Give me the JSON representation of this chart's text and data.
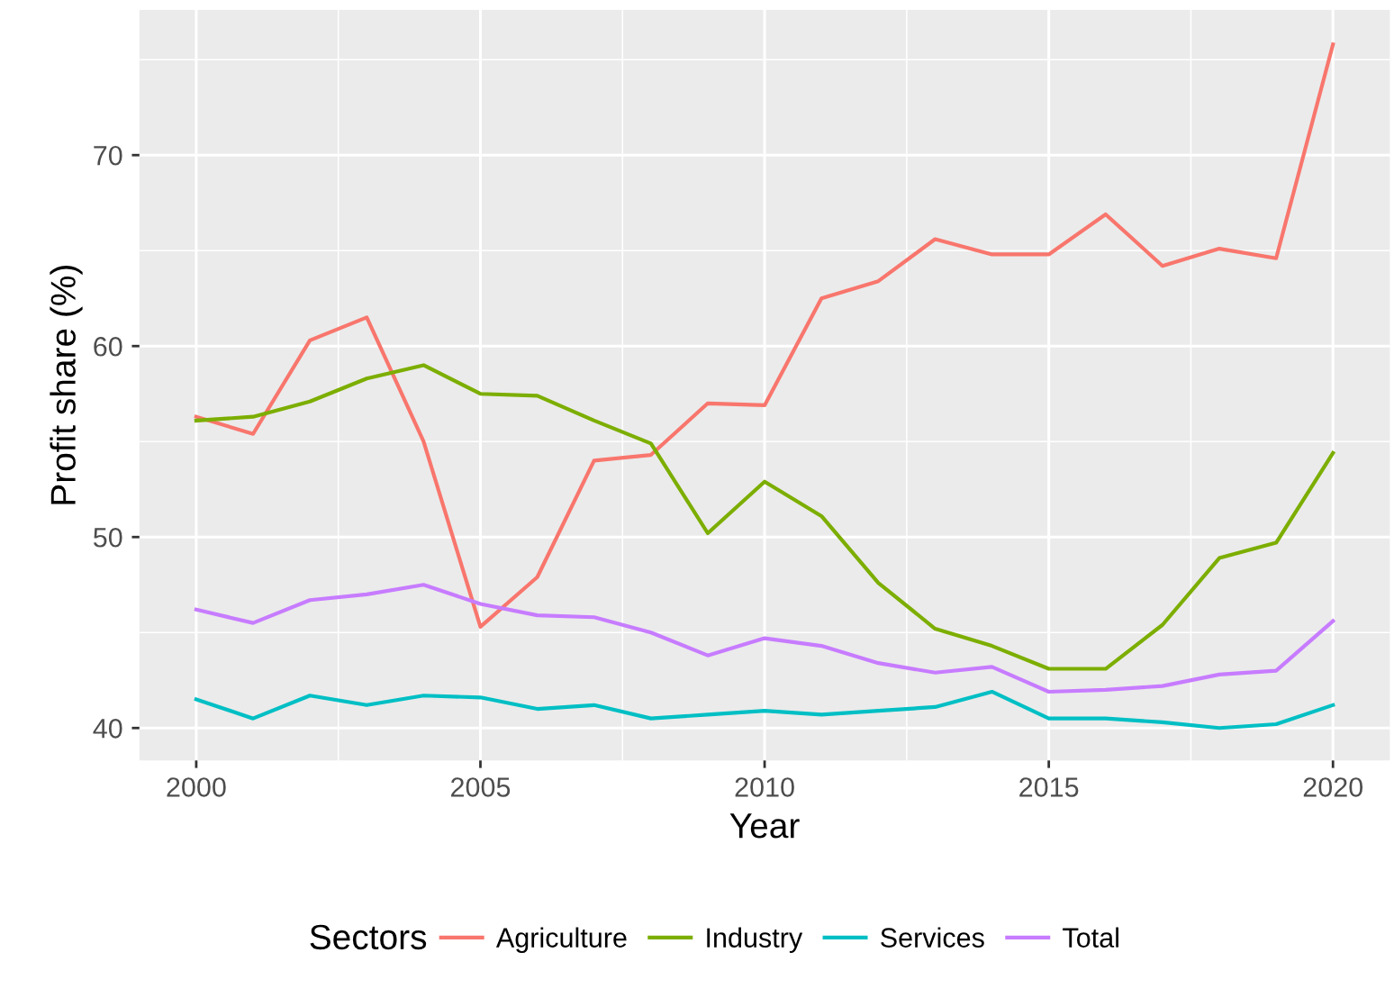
{
  "chart_data": {
    "type": "line",
    "xlabel": "Year",
    "ylabel": "Profit share (%)",
    "legend_title": "Sectors",
    "legend": "bottom",
    "grid": true,
    "x": [
      2000,
      2001,
      2002,
      2003,
      2004,
      2005,
      2006,
      2007,
      2008,
      2009,
      2010,
      2011,
      2012,
      2013,
      2014,
      2015,
      2016,
      2017,
      2018,
      2019,
      2020
    ],
    "xlim": [
      1999,
      2021
    ],
    "xticks": [
      2000,
      2005,
      2010,
      2015,
      2020
    ],
    "ylim": [
      38.3,
      77.6
    ],
    "yticks": [
      40,
      50,
      60,
      70
    ],
    "series": [
      {
        "name": "Agriculture",
        "color": "#f8766d",
        "values": [
          56.3,
          55.4,
          60.3,
          61.5,
          55.0,
          45.3,
          47.9,
          54.0,
          54.3,
          57.0,
          56.9,
          62.5,
          63.4,
          65.6,
          64.8,
          64.8,
          66.9,
          64.2,
          65.1,
          64.6,
          75.8
        ]
      },
      {
        "name": "Industry",
        "color": "#7cae00",
        "values": [
          56.1,
          56.3,
          57.1,
          58.3,
          59.0,
          57.5,
          57.4,
          56.1,
          54.9,
          50.2,
          52.9,
          51.1,
          47.6,
          45.2,
          44.3,
          43.1,
          43.1,
          45.4,
          48.9,
          49.7,
          54.4
        ]
      },
      {
        "name": "Services",
        "color": "#00bfc4",
        "values": [
          41.5,
          40.5,
          41.7,
          41.2,
          41.7,
          41.6,
          41.0,
          41.2,
          40.5,
          40.7,
          40.9,
          40.7,
          40.9,
          41.1,
          41.9,
          40.5,
          40.5,
          40.3,
          40.0,
          40.2,
          41.2
        ]
      },
      {
        "name": "Total",
        "color": "#c77cff",
        "values": [
          46.2,
          45.5,
          46.7,
          47.0,
          47.5,
          46.5,
          45.9,
          45.8,
          45.0,
          43.8,
          44.7,
          44.3,
          43.4,
          42.9,
          43.2,
          41.9,
          42.0,
          42.2,
          42.8,
          43.0,
          45.6
        ]
      }
    ]
  }
}
